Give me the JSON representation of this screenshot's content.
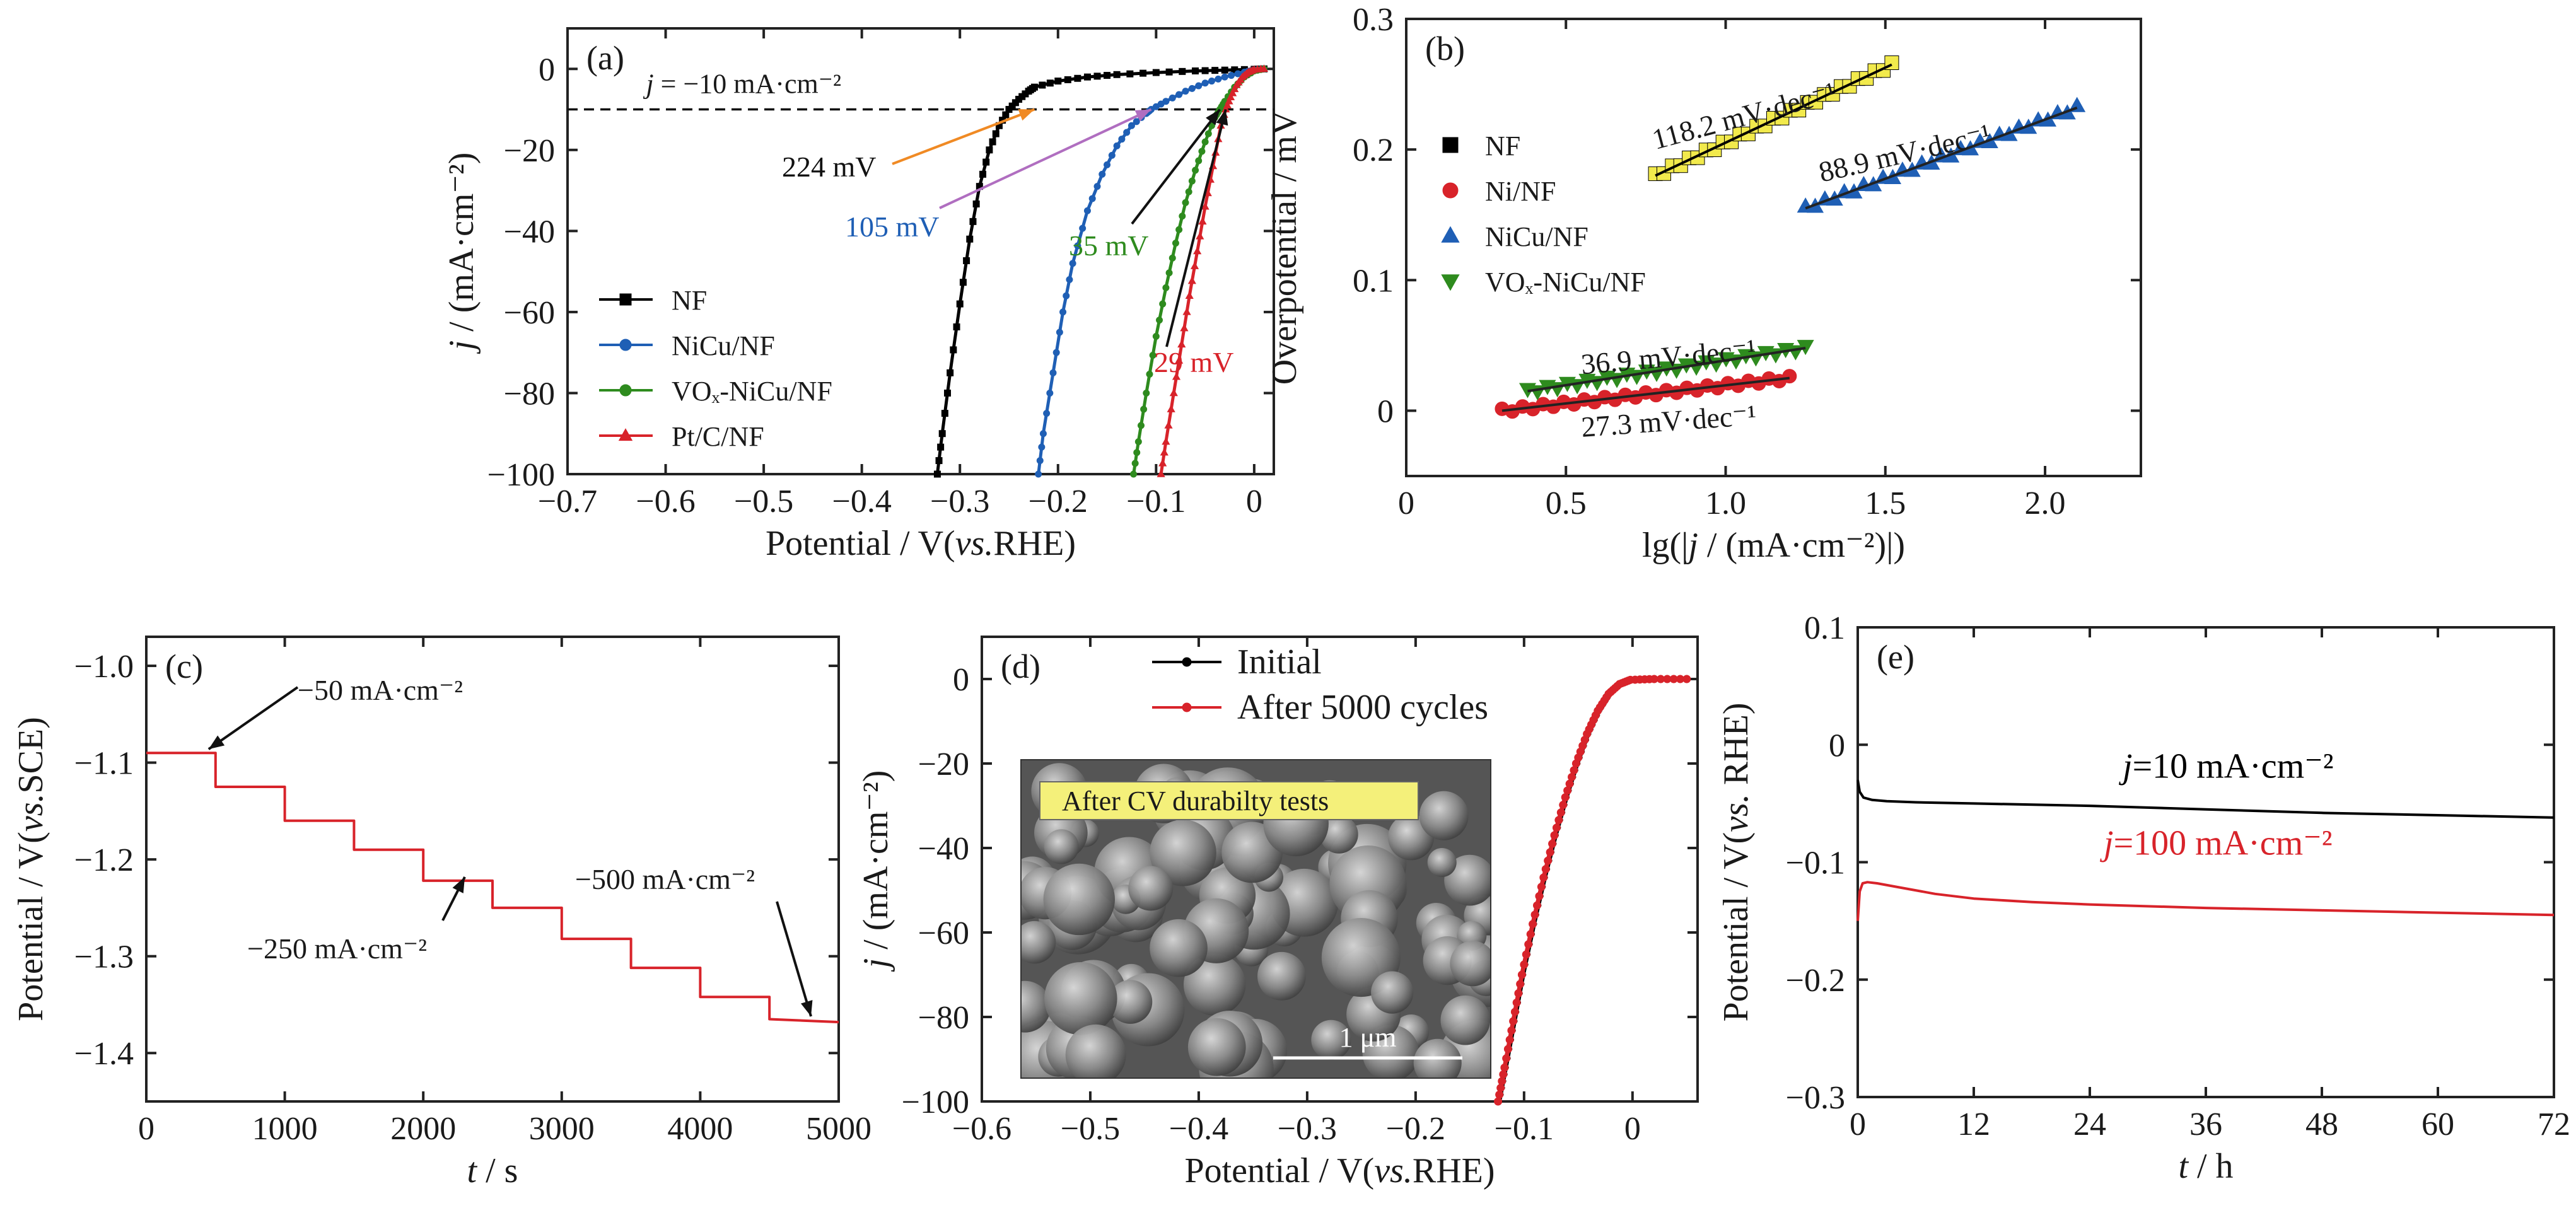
{
  "figure": {
    "chart_data": [
      {
        "panel": "(a)",
        "type": "line",
        "title": "",
        "xlabel": "Potential / V(vs.RHE)",
        "ylabel": "j / (mA·cm⁻²)",
        "xlim": [
          -0.7,
          0.02
        ],
        "ylim": [
          -100,
          10
        ],
        "xticks": [
          -0.7,
          -0.6,
          -0.5,
          -0.4,
          -0.3,
          -0.2,
          -0.1,
          0.0
        ],
        "xtick_labels": [
          "−0.7",
          "−0.6",
          "−0.5",
          "−0.4",
          "−0.3",
          "−0.2",
          "−0.1",
          "0"
        ],
        "yticks": [
          0,
          -20,
          -40,
          -60,
          -80,
          -100
        ],
        "ytick_labels": [
          "0",
          "−20",
          "−40",
          "−60",
          "−80",
          "−100"
        ],
        "legend_position": "bottom-left",
        "series": [
          {
            "name": "NF",
            "color": "#000000",
            "marker": "square",
            "x": [
              -0.323,
              -0.318,
              -0.31,
              -0.3,
              -0.29,
              -0.28,
              -0.27,
              -0.26,
              -0.25,
              -0.24,
              -0.23,
              -0.224,
              -0.2,
              -0.17,
              -0.14,
              -0.1,
              -0.06,
              -0.03,
              0.0,
              0.01
            ],
            "y": [
              -100,
              -90,
              -75,
              -58,
              -42,
              -29,
              -20,
              -14,
              -10,
              -7.5,
              -5.5,
              -4.5,
              -3,
              -2,
              -1.4,
              -0.9,
              -0.5,
              -0.3,
              -0.1,
              0
            ]
          },
          {
            "name": "NiCu/NF",
            "color": "#1f5fb5",
            "marker": "circle",
            "x": [
              -0.22,
              -0.215,
              -0.205,
              -0.195,
              -0.185,
              -0.17,
              -0.155,
              -0.14,
              -0.125,
              -0.11,
              -0.105,
              -0.09,
              -0.07,
              -0.05,
              -0.03,
              -0.01,
              0.0,
              0.01
            ],
            "y": [
              -100,
              -90,
              -75,
              -60,
              -48,
              -35,
              -26,
              -19,
              -14,
              -11,
              -10,
              -8,
              -5.5,
              -3.5,
              -2,
              -0.8,
              -0.3,
              0
            ]
          },
          {
            "name": "VOₓ-NiCu/NF",
            "color": "#2e8b1e",
            "marker": "circle",
            "x": [
              -0.123,
              -0.118,
              -0.11,
              -0.1,
              -0.09,
              -0.08,
              -0.07,
              -0.06,
              -0.05,
              -0.04,
              -0.035,
              -0.03,
              -0.02,
              -0.01,
              0.0,
              0.01
            ],
            "y": [
              -100,
              -92,
              -80,
              -66,
              -54,
              -43,
              -33,
              -25,
              -18,
              -12,
              -10,
              -8,
              -4.5,
              -2,
              -0.5,
              0
            ]
          },
          {
            "name": "Pt/C/NF",
            "color": "#d8232a",
            "marker": "triangle",
            "x": [
              -0.095,
              -0.09,
              -0.082,
              -0.074,
              -0.066,
              -0.058,
              -0.05,
              -0.042,
              -0.034,
              -0.029,
              -0.024,
              -0.018,
              -0.012,
              -0.006,
              0.0,
              0.01
            ],
            "y": [
              -100,
              -92,
              -80,
              -68,
              -56,
              -45,
              -34,
              -24,
              -14,
              -10,
              -7,
              -4,
              -2,
              -0.8,
              -0.2,
              0
            ]
          }
        ],
        "reference_line": {
          "y": -10,
          "label_prefix": "j",
          "label_rest": " = −10 mA·cm⁻²"
        },
        "annotations": [
          {
            "text": "224 mV",
            "color": "#111111",
            "arrow_color": "#f08a24",
            "target": [
              -0.224,
              -10
            ]
          },
          {
            "text": "105 mV",
            "color": "#1f5fb5",
            "arrow_color": "#b06ec0",
            "target": [
              -0.105,
              -10
            ]
          },
          {
            "text": "35 mV",
            "color": "#2e8b1e",
            "arrow_color": "#111111",
            "target": [
              -0.035,
              -10
            ]
          },
          {
            "text": "29 mV",
            "color": "#d8232a",
            "arrow_color": "#111111",
            "target": [
              -0.029,
              -10
            ]
          }
        ]
      },
      {
        "panel": "(b)",
        "type": "scatter",
        "title": "",
        "xlabel": "lg(|j / (mA·cm⁻²)|)",
        "ylabel": "Overpotential / mV",
        "xlim": [
          0,
          2.3
        ],
        "ylim": [
          -0.05,
          0.3
        ],
        "xticks": [
          0,
          0.5,
          1.0,
          1.5,
          2.0
        ],
        "xtick_labels": [
          "0",
          "0.5",
          "1.0",
          "1.5",
          "2.0"
        ],
        "yticks": [
          0,
          0.1,
          0.2,
          0.3
        ],
        "ytick_labels": [
          "0",
          "0.1",
          "0.2",
          "0.3"
        ],
        "legend_position": "top-left",
        "series": [
          {
            "name": "NF",
            "color": "#000000",
            "fill": "#f2ea4c",
            "marker": "square",
            "x": [
              0.78,
              1.52
            ],
            "y": [
              0.18,
              0.265
            ],
            "tafel": "118.2 mV·dec⁻¹"
          },
          {
            "name": "Ni/NF",
            "color": "#d8232a",
            "fill": "#d8232a",
            "marker": "circle",
            "x": [
              0.3,
              1.2
            ],
            "y": [
              0.0,
              0.025
            ],
            "tafel": "27.3 mV·dec⁻¹"
          },
          {
            "name": "NiCu/NF",
            "color": "#1f5fb5",
            "fill": "#1f5fb5",
            "marker": "triangle",
            "x": [
              1.25,
              2.1
            ],
            "y": [
              0.155,
              0.232
            ],
            "tafel": "88.9 mV·dec⁻¹"
          },
          {
            "name": "VOₓ-NiCu/NF",
            "color": "#2e8b1e",
            "fill": "#2e8b1e",
            "marker": "triangle-down",
            "x": [
              0.38,
              1.25
            ],
            "y": [
              0.015,
              0.048
            ],
            "tafel": "36.9 mV·dec⁻¹"
          }
        ]
      },
      {
        "panel": "(c)",
        "type": "line",
        "title": "",
        "xlabel": "t / s",
        "ylabel": "Potential / V(vs.SCE)",
        "xlim": [
          0,
          5000
        ],
        "ylim": [
          -1.45,
          -0.97
        ],
        "xticks": [
          0,
          1000,
          2000,
          3000,
          4000,
          5000
        ],
        "xtick_labels": [
          "0",
          "1000",
          "2000",
          "3000",
          "4000",
          "5000"
        ],
        "yticks": [
          -1.0,
          -1.1,
          -1.2,
          -1.3,
          -1.4
        ],
        "ytick_labels": [
          "−1.0",
          "−1.1",
          "−1.2",
          "−1.3",
          "−1.4"
        ],
        "series": [
          {
            "name": "",
            "color": "#d8232a",
            "x": [
              0,
              500,
              500,
              1000,
              1000,
              1500,
              1500,
              2000,
              2000,
              2500,
              2500,
              3000,
              3000,
              3500,
              3500,
              4000,
              4000,
              4500,
              4500,
              5000
            ],
            "y": [
              -1.09,
              -1.09,
              -1.125,
              -1.125,
              -1.16,
              -1.16,
              -1.19,
              -1.19,
              -1.222,
              -1.222,
              -1.25,
              -1.25,
              -1.282,
              -1.282,
              -1.312,
              -1.312,
              -1.342,
              -1.342,
              -1.365,
              -1.368
            ]
          }
        ],
        "annotations": [
          {
            "text": "−50 mA·cm⁻²",
            "target": [
              450,
              -1.09
            ]
          },
          {
            "text": "−250 mA·cm⁻²",
            "target": [
              2300,
              -1.222
            ]
          },
          {
            "text": "−500 mA·cm⁻²",
            "target": [
              4800,
              -1.366
            ]
          }
        ]
      },
      {
        "panel": "(d)",
        "type": "line",
        "title": "",
        "xlabel": "Potential / V(vs.RHE)",
        "ylabel": "j / (mA·cm⁻²)",
        "xlim": [
          -0.6,
          0.06
        ],
        "ylim": [
          -100,
          10
        ],
        "xticks": [
          -0.6,
          -0.5,
          -0.4,
          -0.3,
          -0.2,
          -0.1,
          0.0
        ],
        "xtick_labels": [
          "−0.6",
          "−0.5",
          "−0.4",
          "−0.3",
          "−0.2",
          "−0.1",
          "0"
        ],
        "yticks": [
          0,
          -20,
          -40,
          -60,
          -80,
          -100
        ],
        "ytick_labels": [
          "0",
          "−20",
          "−40",
          "−60",
          "−80",
          "−100"
        ],
        "legend_position": "top-center",
        "series": [
          {
            "name": "Initial",
            "color": "#000000",
            "x": [
              -0.122,
              -0.116,
              -0.108,
              -0.1,
              -0.09,
              -0.08,
              -0.07,
              -0.06,
              -0.05,
              -0.04,
              -0.03,
              -0.02,
              -0.01,
              0.0,
              0.02,
              0.05
            ],
            "y": [
              -100,
              -92,
              -81,
              -70,
              -58,
              -47,
              -37,
              -28,
              -20,
              -13,
              -7.5,
              -3.5,
              -1.2,
              -0.2,
              0,
              0
            ]
          },
          {
            "name": "After 5000 cycles",
            "color": "#d8232a",
            "x": [
              -0.124,
              -0.118,
              -0.11,
              -0.102,
              -0.092,
              -0.082,
              -0.072,
              -0.062,
              -0.052,
              -0.042,
              -0.032,
              -0.022,
              -0.012,
              -0.002,
              0.02,
              0.05
            ],
            "y": [
              -100,
              -92,
              -81,
              -70,
              -58,
              -47,
              -37,
              -28,
              -20,
              -13,
              -7.5,
              -3.5,
              -1.2,
              -0.2,
              0,
              0
            ]
          }
        ],
        "inset": {
          "label": "After CV durabilty tests",
          "scale_bar": "1 μm"
        }
      },
      {
        "panel": "(e)",
        "type": "line",
        "title": "",
        "xlabel": "t / h",
        "ylabel": "Potential / V(vs. RHE)",
        "xlim": [
          0,
          72
        ],
        "ylim": [
          -0.3,
          0.1
        ],
        "xticks": [
          0,
          12,
          24,
          36,
          48,
          60,
          72
        ],
        "xtick_labels": [
          "0",
          "12",
          "24",
          "36",
          "48",
          "60",
          "72"
        ],
        "yticks": [
          0.1,
          0,
          -0.1,
          -0.2,
          -0.3
        ],
        "ytick_labels": [
          "0.1",
          "0",
          "−0.1",
          "−0.2",
          "−0.3"
        ],
        "series": [
          {
            "name": "j=10 mA·cm⁻²",
            "label_prefix": "j",
            "label_rest": "=10 mA·cm⁻²",
            "color": "#000000",
            "x": [
              0,
              0.2,
              0.6,
              1.5,
              3,
              6,
              12,
              24,
              36,
              48,
              60,
              72
            ],
            "y": [
              -0.03,
              -0.04,
              -0.045,
              -0.047,
              -0.048,
              -0.049,
              -0.05,
              -0.052,
              -0.055,
              -0.058,
              -0.06,
              -0.062
            ]
          },
          {
            "name": "j=100 mA·cm⁻²",
            "label_prefix": "j",
            "label_rest": "=100 mA·cm⁻²",
            "color": "#d8232a",
            "x": [
              0,
              0.2,
              0.5,
              1,
              2,
              4,
              8,
              12,
              18,
              24,
              36,
              48,
              60,
              72
            ],
            "y": [
              -0.15,
              -0.125,
              -0.118,
              -0.117,
              -0.118,
              -0.121,
              -0.127,
              -0.131,
              -0.134,
              -0.136,
              -0.139,
              -0.141,
              -0.143,
              -0.145
            ]
          }
        ]
      }
    ]
  }
}
